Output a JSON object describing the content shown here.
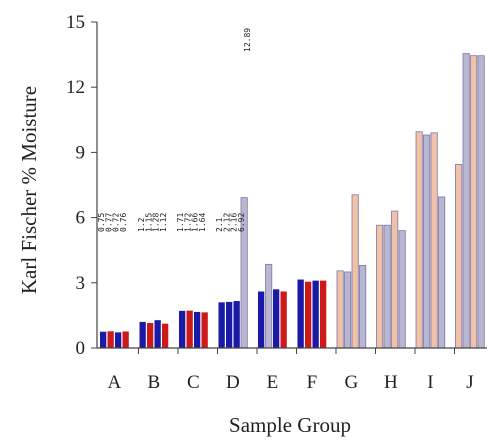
{
  "chart_data": {
    "type": "bar",
    "xlabel": "Sample Group",
    "ylabel": "Karl Fischer % Moisture",
    "ylim": [
      0,
      15
    ],
    "yticks": [
      0,
      3,
      6,
      9,
      12,
      15
    ],
    "grid": false,
    "categories": [
      {
        "label": "A",
        "values": [
          0.75,
          0.77,
          0.72,
          0.76
        ]
      },
      {
        "label": "B",
        "values": [
          1.2,
          1.15,
          1.28,
          1.12
        ]
      },
      {
        "label": "C",
        "values": [
          1.71,
          1.72,
          1.66,
          1.64
        ]
      },
      {
        "label": "D",
        "values": [
          2.1,
          2.12,
          2.16,
          6.92
        ]
      },
      {
        "label": "E",
        "values": [
          2.6,
          3.85,
          2.7,
          2.6
        ]
      },
      {
        "label": "F",
        "values": [
          3.15,
          3.05,
          3.1,
          3.1
        ]
      },
      {
        "label": "G",
        "values": [
          3.55,
          3.5,
          7.05,
          3.8
        ]
      },
      {
        "label": "H",
        "values": [
          5.65,
          5.65,
          6.3,
          5.4
        ]
      },
      {
        "label": "I",
        "values": [
          9.95,
          9.8,
          9.9,
          6.95
        ]
      },
      {
        "label": "J",
        "values": [
          8.45,
          13.55,
          13.45,
          13.45
        ]
      }
    ],
    "annotations": [
      {
        "group": "A",
        "text": "0.75 0.77 0.72 0.76"
      },
      {
        "group": "B",
        "text": "1.2 1.15 1.28 1.12"
      },
      {
        "group": "C",
        "text": "1.71 1.72 1.66 1.64"
      },
      {
        "group": "D",
        "text": "2.1 2.12 2.16 6.92"
      },
      {
        "group": "D",
        "text": "12.89"
      }
    ],
    "colors": {
      "red": "#cc1a1a",
      "blue": "#1a1aa6",
      "peach": "#f2c2a8",
      "lavender": "#b9b6cf",
      "outline": "#7a78a8",
      "axis": "#444444"
    }
  }
}
